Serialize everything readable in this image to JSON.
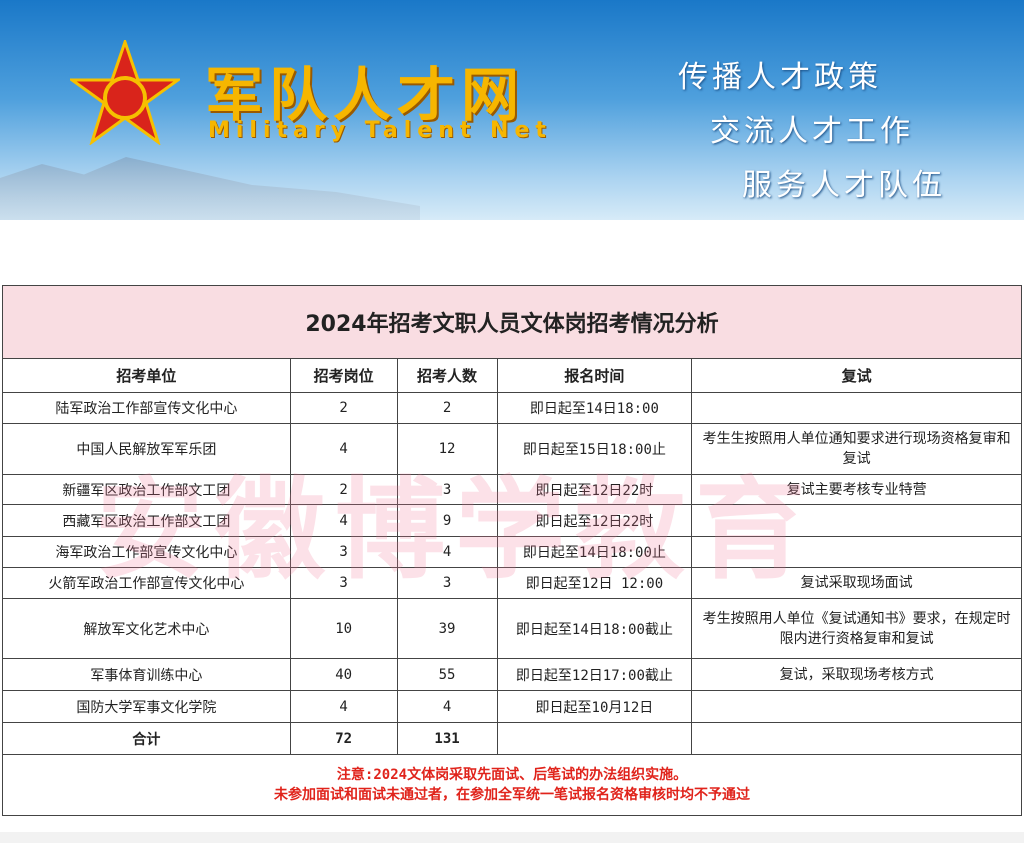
{
  "banner": {
    "logo_cn": "军队人才网",
    "logo_en": "Military Talent Net",
    "slogans": [
      "传播人才政策",
      "交流人才工作",
      "服务人才队伍"
    ]
  },
  "table": {
    "title": "2024年招考文职人员文体岗招考情况分析",
    "headers": [
      "招考单位",
      "招考岗位",
      "招考人数",
      "报名时间",
      "复试"
    ],
    "rows": [
      [
        "陆军政治工作部宣传文化中心",
        "2",
        "2",
        "即日起至14日18:00",
        ""
      ],
      [
        "中国人民解放军军乐团",
        "4",
        "12",
        "即日起至15日18:00止",
        "考生生按照用人单位通知要求进行现场资格复审和复试"
      ],
      [
        "新疆军区政治工作部文工团",
        "2",
        "3",
        "即日起至12日22时",
        "复试主要考核专业特营"
      ],
      [
        "西藏军区政治工作部文工团",
        "4",
        "9",
        "即日起至12日22时",
        ""
      ],
      [
        "海军政治工作部宣传文化中心",
        "3",
        "4",
        "即日起至14日18:00止",
        ""
      ],
      [
        "火箭军政治工作部宣传文化中心",
        "3",
        "3",
        "即日起至12日 12:00",
        "复试采取现场面试"
      ],
      [
        "解放军文化艺术中心",
        "10",
        "39",
        "即日起至14日18:00截止",
        "考生按照用人单位《复试通知书》要求，在规定时限内进行资格复审和复试"
      ],
      [
        "军事体育训练中心",
        "40",
        "55",
        "即日起至12日17:00截止",
        "复试，采取现场考核方式"
      ],
      [
        "国防大学军事文化学院",
        "4",
        "4",
        "即日起至10月12日",
        ""
      ]
    ],
    "total": [
      "合计",
      "72",
      "131",
      "",
      ""
    ],
    "note": [
      "注意:2024文体岗采取先面试、后笔试的办法组织实施。",
      "未参加面试和面试未通过者，在参加全军统一笔试报名资格审核时均不予通过"
    ]
  },
  "watermark": "安徽博学教育",
  "colors": {
    "title_bg": "#f9dde2",
    "note_red": "#e0231b",
    "logo_gold": "#f6b600"
  }
}
